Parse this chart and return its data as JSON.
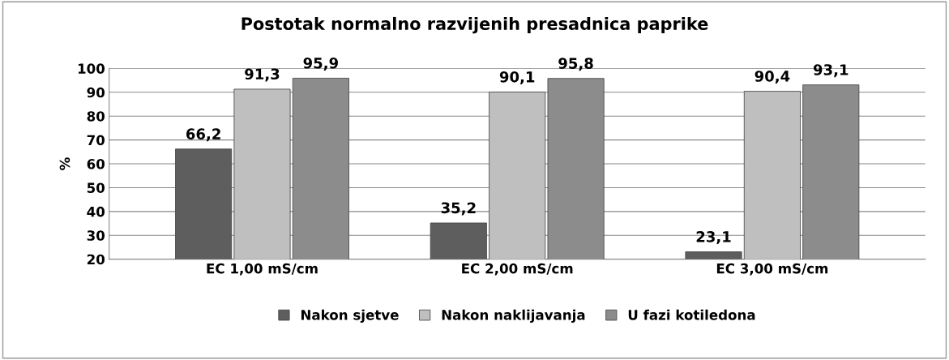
{
  "chart_data": {
    "type": "bar",
    "title": "Postotak normalno razvijenih presadnica paprike",
    "ylabel": "%",
    "categories": [
      "EC 1,00 mS/cm",
      "EC 2,00 mS/cm",
      "EC 3,00 mS/cm"
    ],
    "series": [
      {
        "name": "Nakon sjetve",
        "color": "#5e5e5e",
        "values": [
          66.2,
          35.2,
          23.1
        ],
        "value_labels": [
          "66,2",
          "35,2",
          "23,1"
        ]
      },
      {
        "name": "Nakon naklijavanja",
        "color": "#bfbfbf",
        "values": [
          91.3,
          90.1,
          90.4
        ],
        "value_labels": [
          "91,3",
          "90,1",
          "90,4"
        ]
      },
      {
        "name": "U fazi kotiledona",
        "color": "#8c8c8c",
        "values": [
          95.9,
          95.8,
          93.1
        ],
        "value_labels": [
          "95,9",
          "95,8",
          "93,1"
        ]
      }
    ],
    "ylim": [
      20,
      100
    ],
    "yticks": [
      20,
      30,
      40,
      50,
      60,
      70,
      80,
      90,
      100
    ],
    "grid": "y",
    "legend": "bottom"
  }
}
